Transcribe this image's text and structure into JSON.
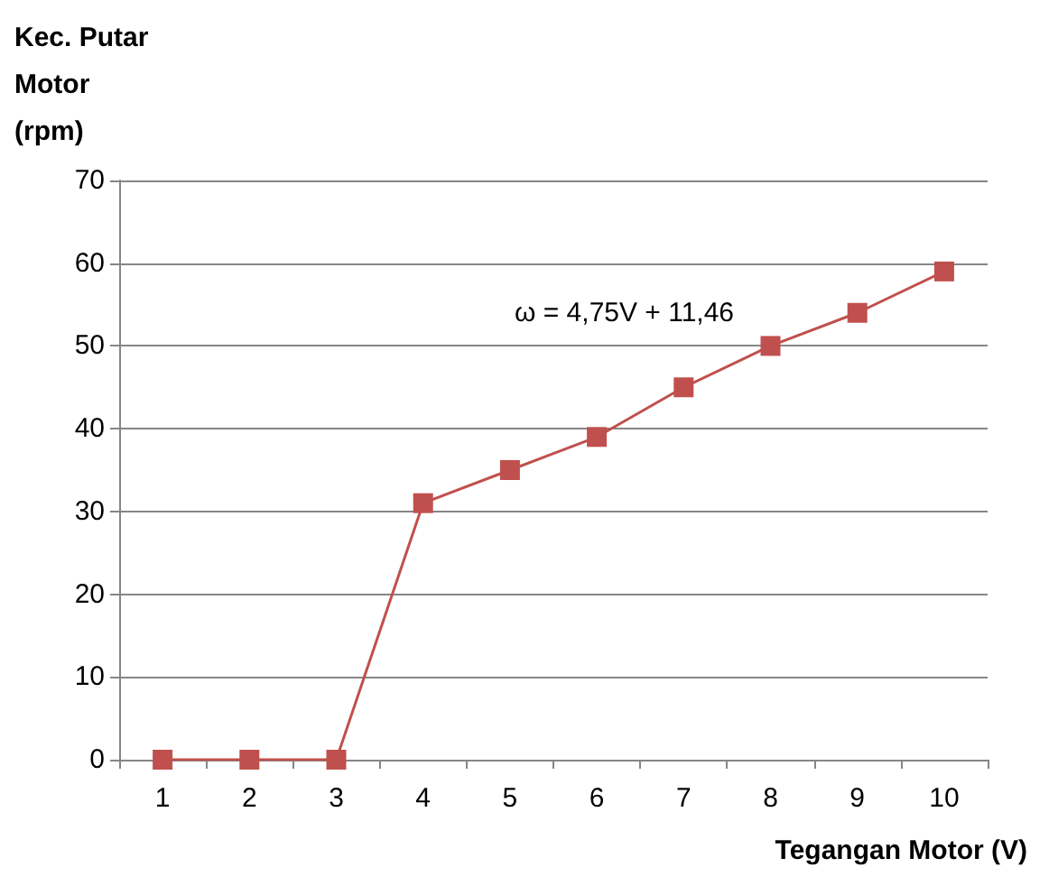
{
  "chart_data": {
    "type": "line",
    "ylabel": "Kec. Putar Motor (rpm)",
    "xlabel": "Tegangan Motor (V)",
    "categories": [
      "1",
      "2",
      "3",
      "4",
      "5",
      "6",
      "7",
      "8",
      "9",
      "10"
    ],
    "series": [
      {
        "color": "#c0504d",
        "values": [
          0,
          0,
          0,
          31,
          35,
          39,
          45,
          50,
          54,
          59
        ]
      }
    ],
    "ylim": [
      0,
      70
    ],
    "yticks": [
      0,
      10,
      20,
      30,
      40,
      50,
      60,
      70
    ],
    "grid": "y",
    "marker": "square",
    "line_style": "solid",
    "annotations": [
      "ω = 4,75V + 11,46"
    ]
  }
}
